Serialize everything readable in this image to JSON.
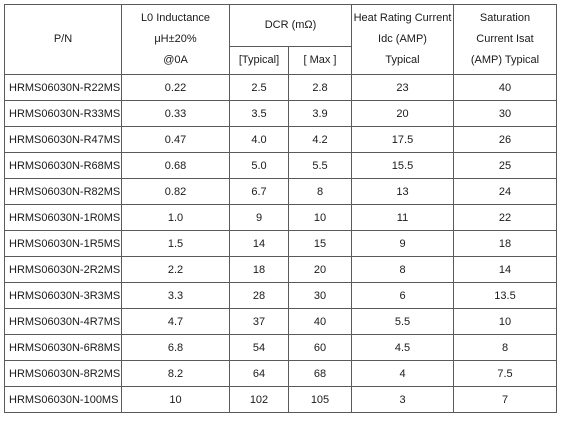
{
  "header": {
    "pn": "P/N",
    "inductance": [
      "L0  Inductance",
      "μH±20%",
      "@0A"
    ],
    "dcr": "DCR (mΩ)",
    "dcr_typical": "[Typical]",
    "dcr_max": "[ Max ]",
    "heat": [
      "Heat Rating Current",
      "Idc  (AMP)",
      "Typical"
    ],
    "sat": [
      "Saturation",
      "Current  Isat",
      "(AMP)  Typical"
    ]
  },
  "rows": [
    {
      "pn": "HRMS06030N-R22MS",
      "l0": "0.22",
      "dcr_typ": "2.5",
      "dcr_max": "2.8",
      "idc": "23",
      "isat": "40"
    },
    {
      "pn": "HRMS06030N-R33MS",
      "l0": "0.33",
      "dcr_typ": "3.5",
      "dcr_max": "3.9",
      "idc": "20",
      "isat": "30"
    },
    {
      "pn": "HRMS06030N-R47MS",
      "l0": "0.47",
      "dcr_typ": "4.0",
      "dcr_max": "4.2",
      "idc": "17.5",
      "isat": "26"
    },
    {
      "pn": "HRMS06030N-R68MS",
      "l0": "0.68",
      "dcr_typ": "5.0",
      "dcr_max": "5.5",
      "idc": "15.5",
      "isat": "25"
    },
    {
      "pn": "HRMS06030N-R82MS",
      "l0": "0.82",
      "dcr_typ": "6.7",
      "dcr_max": "8",
      "idc": "13",
      "isat": "24"
    },
    {
      "pn": "HRMS06030N-1R0MS",
      "l0": "1.0",
      "dcr_typ": "9",
      "dcr_max": "10",
      "idc": "11",
      "isat": "22"
    },
    {
      "pn": "HRMS06030N-1R5MS",
      "l0": "1.5",
      "dcr_typ": "14",
      "dcr_max": "15",
      "idc": "9",
      "isat": "18"
    },
    {
      "pn": "HRMS06030N-2R2MS",
      "l0": "2.2",
      "dcr_typ": "18",
      "dcr_max": "20",
      "idc": "8",
      "isat": "14"
    },
    {
      "pn": "HRMS06030N-3R3MS",
      "l0": "3.3",
      "dcr_typ": "28",
      "dcr_max": "30",
      "idc": "6",
      "isat": "13.5"
    },
    {
      "pn": "HRMS06030N-4R7MS",
      "l0": "4.7",
      "dcr_typ": "37",
      "dcr_max": "40",
      "idc": "5.5",
      "isat": "10"
    },
    {
      "pn": "HRMS06030N-6R8MS",
      "l0": "6.8",
      "dcr_typ": "54",
      "dcr_max": "60",
      "idc": "4.5",
      "isat": "8"
    },
    {
      "pn": "HRMS06030N-8R2MS",
      "l0": "8.2",
      "dcr_typ": "64",
      "dcr_max": "68",
      "idc": "4",
      "isat": "7.5"
    },
    {
      "pn": "HRMS06030N-100MS",
      "l0": "10",
      "dcr_typ": "102",
      "dcr_max": "105",
      "idc": "3",
      "isat": "7"
    }
  ]
}
